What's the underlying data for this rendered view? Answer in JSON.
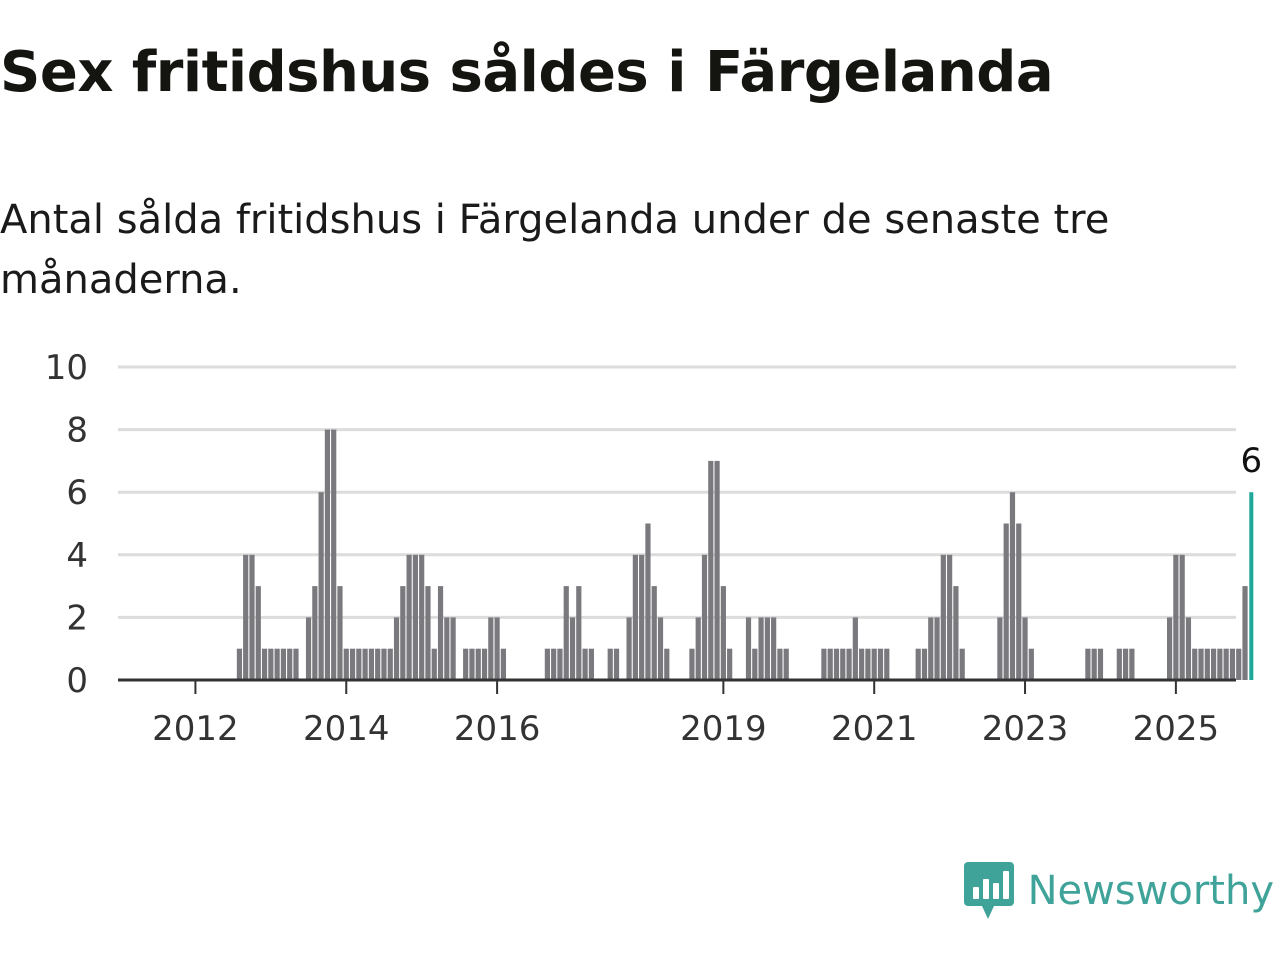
{
  "header": {
    "title": "Sex fritidshus såldes i Färgelanda",
    "subtitle": "Antal sålda fritidshus i Färgelanda under de senaste tre månaderna."
  },
  "brand": {
    "name": "Newsworthy",
    "icon": "newsworthy-logo-icon",
    "color": "#3fa39a"
  },
  "colors": {
    "bar": "#7a797e",
    "highlight": "#1fa89a",
    "grid": "#dcdcdc",
    "axis": "#333333"
  },
  "chart_data": {
    "type": "bar",
    "title": "Sex fritidshus såldes i Färgelanda",
    "subtitle": "Antal sålda fritidshus i Färgelanda under de senaste tre månaderna.",
    "xlabel": "",
    "ylabel": "",
    "ylim": [
      0,
      10
    ],
    "yticks": [
      0,
      2,
      4,
      6,
      8,
      10
    ],
    "xticks": [
      "2012",
      "2014",
      "2016",
      "2019",
      "2021",
      "2023",
      "2025"
    ],
    "grid": true,
    "legend": "none",
    "frequency": "monthly, rolling three-month count",
    "start": "2011-08",
    "values": [
      0,
      0,
      0,
      0,
      0,
      0,
      0,
      0,
      0,
      0,
      0,
      0,
      1,
      4,
      4,
      3,
      1,
      1,
      1,
      1,
      1,
      1,
      0,
      2,
      3,
      6,
      8,
      8,
      3,
      1,
      1,
      1,
      1,
      1,
      1,
      1,
      1,
      2,
      3,
      4,
      4,
      4,
      3,
      1,
      3,
      2,
      2,
      0,
      1,
      1,
      1,
      1,
      2,
      2,
      1,
      0,
      0,
      0,
      0,
      0,
      0,
      1,
      1,
      1,
      3,
      2,
      3,
      1,
      1,
      0,
      0,
      1,
      1,
      0,
      2,
      4,
      4,
      5,
      3,
      2,
      1,
      0,
      0,
      0,
      1,
      2,
      4,
      7,
      7,
      3,
      1,
      0,
      0,
      2,
      1,
      2,
      2,
      2,
      1,
      1,
      0,
      0,
      0,
      0,
      0,
      1,
      1,
      1,
      1,
      1,
      2,
      1,
      1,
      1,
      1,
      1,
      0,
      0,
      0,
      0,
      1,
      1,
      2,
      2,
      4,
      4,
      3,
      1,
      0,
      0,
      0,
      0,
      0,
      2,
      5,
      6,
      5,
      2,
      1,
      0,
      0,
      0,
      0,
      0,
      0,
      0,
      0,
      1,
      1,
      1,
      0,
      0,
      1,
      1,
      1,
      0,
      0,
      0,
      0,
      0,
      2,
      4,
      4,
      2,
      1,
      1,
      1,
      1,
      1,
      1,
      1,
      1,
      3,
      6
    ],
    "highlight": {
      "label": "6",
      "value": 6
    }
  }
}
